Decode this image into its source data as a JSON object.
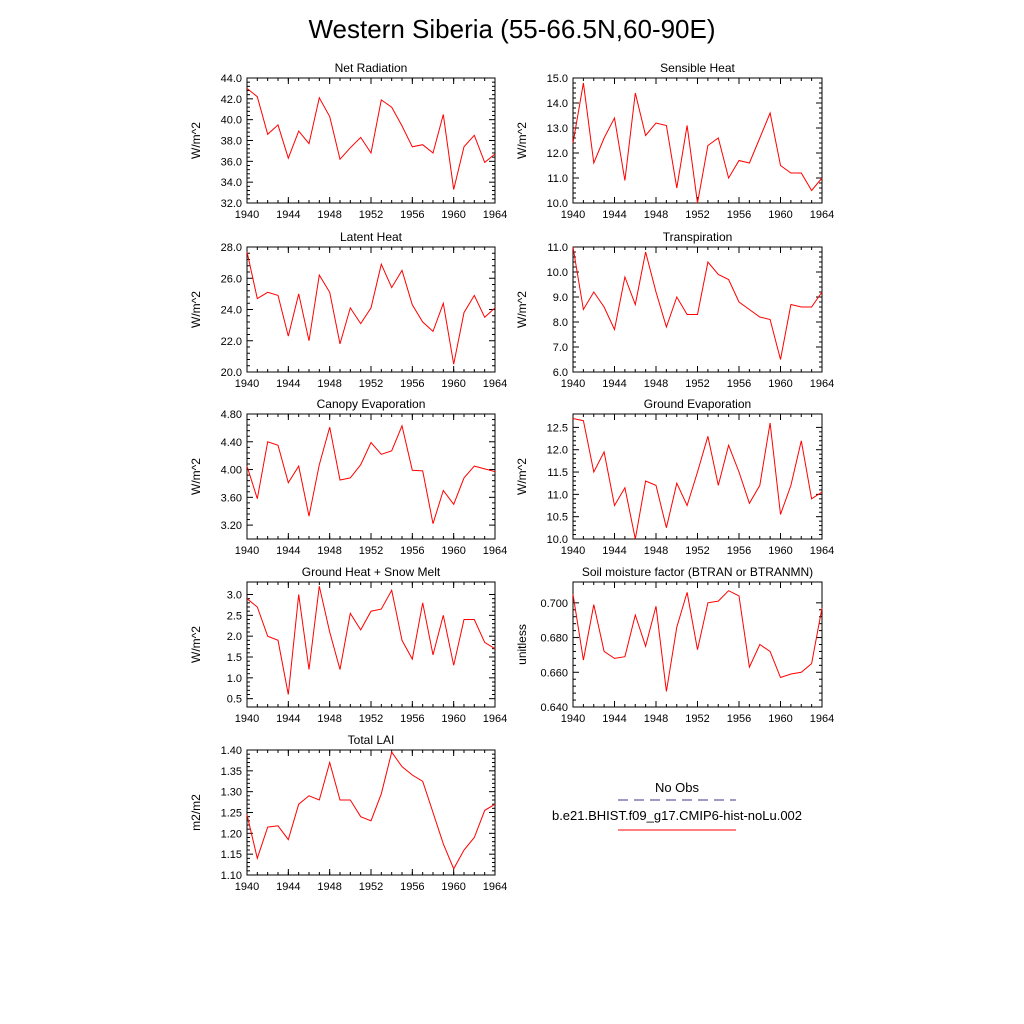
{
  "title": "Western Siberia (55-66.5N,60-90E)",
  "colors": {
    "series": "#ff0000",
    "obs": "#3a3a8c",
    "axis": "#000000"
  },
  "legend": {
    "obs_label": "No Obs",
    "model_label": "b.e21.BHIST.f09_g17.CMIP6-hist-noLu.002"
  },
  "chart_data": [
    {
      "type": "line",
      "title": "Net Radiation",
      "ylabel": "W/m^2",
      "xlim": [
        1940,
        1964
      ],
      "ylim": [
        32.0,
        44.0
      ],
      "xticks": [
        1940,
        1944,
        1948,
        1952,
        1956,
        1960,
        1964
      ],
      "yticks": [
        "32.0",
        "34.0",
        "36.0",
        "38.0",
        "40.0",
        "42.0",
        "44.0"
      ],
      "x": [
        1940,
        1941,
        1942,
        1943,
        1944,
        1945,
        1946,
        1947,
        1948,
        1949,
        1950,
        1951,
        1952,
        1953,
        1954,
        1955,
        1956,
        1957,
        1958,
        1959,
        1960,
        1961,
        1962,
        1963,
        1964
      ],
      "values": [
        43.0,
        42.2,
        38.6,
        39.5,
        36.3,
        38.9,
        37.7,
        42.1,
        40.3,
        36.2,
        37.3,
        38.3,
        36.8,
        41.9,
        41.2,
        39.4,
        37.4,
        37.6,
        36.8,
        40.5,
        33.3,
        37.4,
        38.5,
        35.9,
        36.7
      ]
    },
    {
      "type": "line",
      "title": "Sensible Heat",
      "ylabel": "W/m^2",
      "xlim": [
        1940,
        1964
      ],
      "ylim": [
        10.0,
        15.0
      ],
      "xticks": [
        1940,
        1944,
        1948,
        1952,
        1956,
        1960,
        1964
      ],
      "yticks": [
        "10.0",
        "11.0",
        "12.0",
        "13.0",
        "14.0",
        "15.0"
      ],
      "x": [
        1940,
        1941,
        1942,
        1943,
        1944,
        1945,
        1946,
        1947,
        1948,
        1949,
        1950,
        1951,
        1952,
        1953,
        1954,
        1955,
        1956,
        1957,
        1958,
        1959,
        1960,
        1961,
        1962,
        1963,
        1964
      ],
      "values": [
        12.4,
        14.8,
        11.6,
        12.6,
        13.4,
        10.9,
        14.4,
        12.7,
        13.2,
        13.1,
        10.6,
        13.1,
        10.0,
        12.3,
        12.6,
        11.0,
        11.7,
        11.6,
        12.6,
        13.6,
        11.5,
        11.2,
        11.2,
        10.5,
        11.0
      ]
    },
    {
      "type": "line",
      "title": "Latent Heat",
      "ylabel": "W/m^2",
      "xlim": [
        1940,
        1964
      ],
      "ylim": [
        20.0,
        28.0
      ],
      "xticks": [
        1940,
        1944,
        1948,
        1952,
        1956,
        1960,
        1964
      ],
      "yticks": [
        "20.0",
        "22.0",
        "24.0",
        "26.0",
        "28.0"
      ],
      "x": [
        1940,
        1941,
        1942,
        1943,
        1944,
        1945,
        1946,
        1947,
        1948,
        1949,
        1950,
        1951,
        1952,
        1953,
        1954,
        1955,
        1956,
        1957,
        1958,
        1959,
        1960,
        1961,
        1962,
        1963,
        1964
      ],
      "values": [
        27.7,
        24.7,
        25.1,
        24.9,
        22.3,
        25.0,
        22.0,
        26.2,
        25.1,
        21.8,
        24.1,
        23.1,
        24.1,
        26.9,
        25.4,
        26.5,
        24.3,
        23.2,
        22.6,
        24.4,
        20.5,
        23.8,
        24.9,
        23.5,
        24.1
      ]
    },
    {
      "type": "line",
      "title": "Transpiration",
      "ylabel": "W/m^2",
      "xlim": [
        1940,
        1964
      ],
      "ylim": [
        6.0,
        11.0
      ],
      "xticks": [
        1940,
        1944,
        1948,
        1952,
        1956,
        1960,
        1964
      ],
      "yticks": [
        "6.0",
        "7.0",
        "8.0",
        "9.0",
        "10.0",
        "11.0"
      ],
      "x": [
        1940,
        1941,
        1942,
        1943,
        1944,
        1945,
        1946,
        1947,
        1948,
        1949,
        1950,
        1951,
        1952,
        1953,
        1954,
        1955,
        1956,
        1957,
        1958,
        1959,
        1960,
        1961,
        1962,
        1963,
        1964
      ],
      "values": [
        11.0,
        8.5,
        9.2,
        8.6,
        7.7,
        9.8,
        8.7,
        10.8,
        9.2,
        7.8,
        9.0,
        8.3,
        8.3,
        10.4,
        9.9,
        9.7,
        8.8,
        8.5,
        8.2,
        8.1,
        6.5,
        8.7,
        8.6,
        8.6,
        9.2
      ]
    },
    {
      "type": "line",
      "title": "Canopy Evaporation",
      "ylabel": "W/m^2",
      "xlim": [
        1940,
        1964
      ],
      "ylim": [
        3.0,
        4.8
      ],
      "xticks": [
        1940,
        1944,
        1948,
        1952,
        1956,
        1960,
        1964
      ],
      "yticks": [
        "3.20",
        "3.60",
        "4.00",
        "4.40",
        "4.80"
      ],
      "x": [
        1940,
        1941,
        1942,
        1943,
        1944,
        1945,
        1946,
        1947,
        1948,
        1949,
        1950,
        1951,
        1952,
        1953,
        1954,
        1955,
        1956,
        1957,
        1958,
        1959,
        1960,
        1961,
        1962,
        1963,
        1964
      ],
      "values": [
        4.05,
        3.58,
        4.4,
        4.35,
        3.81,
        4.05,
        3.33,
        4.07,
        4.61,
        3.85,
        3.88,
        4.07,
        4.39,
        4.22,
        4.27,
        4.63,
        3.99,
        3.98,
        3.22,
        3.7,
        3.5,
        3.88,
        4.05,
        4.01,
        3.97
      ]
    },
    {
      "type": "line",
      "title": "Ground Evaporation",
      "ylabel": "W/m^2",
      "xlim": [
        1940,
        1964
      ],
      "ylim": [
        10.0,
        12.8
      ],
      "xticks": [
        1940,
        1944,
        1948,
        1952,
        1956,
        1960,
        1964
      ],
      "yticks": [
        "10.0",
        "10.5",
        "11.0",
        "11.5",
        "12.0",
        "12.5"
      ],
      "x": [
        1940,
        1941,
        1942,
        1943,
        1944,
        1945,
        1946,
        1947,
        1948,
        1949,
        1950,
        1951,
        1952,
        1953,
        1954,
        1955,
        1956,
        1957,
        1958,
        1959,
        1960,
        1961,
        1962,
        1963,
        1964
      ],
      "values": [
        12.7,
        12.65,
        11.5,
        11.95,
        10.75,
        11.15,
        10.0,
        11.3,
        11.2,
        10.25,
        11.25,
        10.75,
        11.5,
        12.3,
        11.2,
        12.1,
        11.5,
        10.8,
        11.2,
        12.6,
        10.55,
        11.2,
        12.2,
        10.9,
        11.05
      ]
    },
    {
      "type": "line",
      "title": "Ground Heat + Snow Melt",
      "ylabel": "W/m^2",
      "xlim": [
        1940,
        1964
      ],
      "ylim": [
        0.3,
        3.3
      ],
      "xticks": [
        1940,
        1944,
        1948,
        1952,
        1956,
        1960,
        1964
      ],
      "yticks": [
        "0.5",
        "1.0",
        "1.5",
        "2.0",
        "2.5",
        "3.0"
      ],
      "x": [
        1940,
        1941,
        1942,
        1943,
        1944,
        1945,
        1946,
        1947,
        1948,
        1949,
        1950,
        1951,
        1952,
        1953,
        1954,
        1955,
        1956,
        1957,
        1958,
        1959,
        1960,
        1961,
        1962,
        1963,
        1964
      ],
      "values": [
        2.9,
        2.7,
        2.0,
        1.9,
        0.6,
        3.0,
        1.2,
        3.2,
        2.1,
        1.2,
        2.55,
        2.15,
        2.6,
        2.65,
        3.1,
        1.9,
        1.45,
        2.8,
        1.55,
        2.5,
        1.3,
        2.4,
        2.4,
        1.85,
        1.7
      ]
    },
    {
      "type": "line",
      "title": "Soil moisture factor (BTRAN or BTRANMN)",
      "ylabel": "unitless",
      "xlim": [
        1940,
        1964
      ],
      "ylim": [
        0.64,
        0.712
      ],
      "xticks": [
        1940,
        1944,
        1948,
        1952,
        1956,
        1960,
        1964
      ],
      "yticks": [
        "0.640",
        "0.660",
        "0.680",
        "0.700"
      ],
      "x": [
        1940,
        1941,
        1942,
        1943,
        1944,
        1945,
        1946,
        1947,
        1948,
        1949,
        1950,
        1951,
        1952,
        1953,
        1954,
        1955,
        1956,
        1957,
        1958,
        1959,
        1960,
        1961,
        1962,
        1963,
        1964
      ],
      "values": [
        0.705,
        0.667,
        0.699,
        0.672,
        0.668,
        0.669,
        0.693,
        0.675,
        0.698,
        0.649,
        0.686,
        0.706,
        0.673,
        0.7,
        0.701,
        0.707,
        0.704,
        0.663,
        0.676,
        0.672,
        0.657,
        0.659,
        0.66,
        0.665,
        0.697
      ]
    },
    {
      "type": "line",
      "title": "Total LAI",
      "ylabel": "m2/m2",
      "xlim": [
        1940,
        1964
      ],
      "ylim": [
        1.1,
        1.4
      ],
      "xticks": [
        1940,
        1944,
        1948,
        1952,
        1956,
        1960,
        1964
      ],
      "yticks": [
        "1.10",
        "1.15",
        "1.20",
        "1.25",
        "1.30",
        "1.35",
        "1.40"
      ],
      "x": [
        1940,
        1941,
        1942,
        1943,
        1944,
        1945,
        1946,
        1947,
        1948,
        1949,
        1950,
        1951,
        1952,
        1953,
        1954,
        1955,
        1956,
        1957,
        1958,
        1959,
        1960,
        1961,
        1962,
        1963,
        1964
      ],
      "values": [
        1.245,
        1.14,
        1.215,
        1.218,
        1.185,
        1.27,
        1.29,
        1.28,
        1.37,
        1.28,
        1.28,
        1.24,
        1.23,
        1.295,
        1.395,
        1.36,
        1.34,
        1.325,
        1.25,
        1.175,
        1.115,
        1.16,
        1.19,
        1.255,
        1.27
      ]
    }
  ]
}
